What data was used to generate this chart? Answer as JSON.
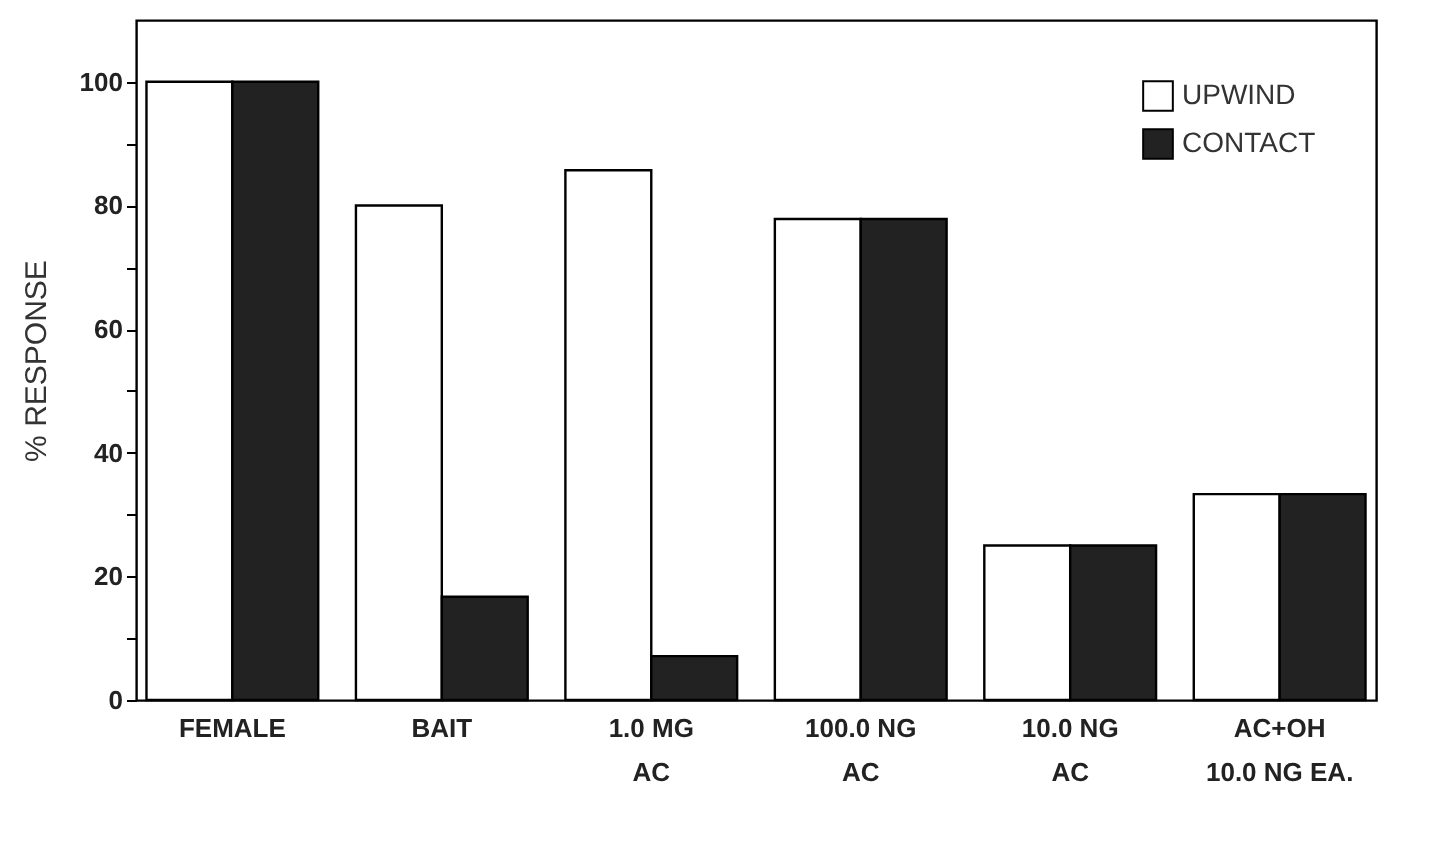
{
  "chart_data": {
    "type": "bar",
    "ylabel": "% RESPONSE",
    "categories": [
      "FEMALE",
      "BAIT",
      "1.0  MG\nAC",
      "100.0  NG\nAC",
      "10.0  NG\nAC",
      "AC+OH\n10.0 NG EA."
    ],
    "series": [
      {
        "name": "UPWIND",
        "color": "#ffffff",
        "values": [
          100,
          80,
          85.7,
          77.8,
          25,
          33.3
        ]
      },
      {
        "name": "CONTACT",
        "color": "#222222",
        "values": [
          100,
          16.7,
          7.1,
          77.8,
          25,
          33.3
        ]
      }
    ],
    "ylim": [
      0,
      110
    ],
    "yticks": [
      0,
      {
        "value": 10,
        "label": null
      },
      20,
      {
        "value": 30,
        "label": null
      },
      40,
      {
        "value": 50,
        "label": null
      },
      60,
      {
        "value": 70,
        "label": null
      },
      80,
      {
        "value": 90,
        "label": null
      },
      100
    ],
    "legend": "top right",
    "grid": false
  }
}
